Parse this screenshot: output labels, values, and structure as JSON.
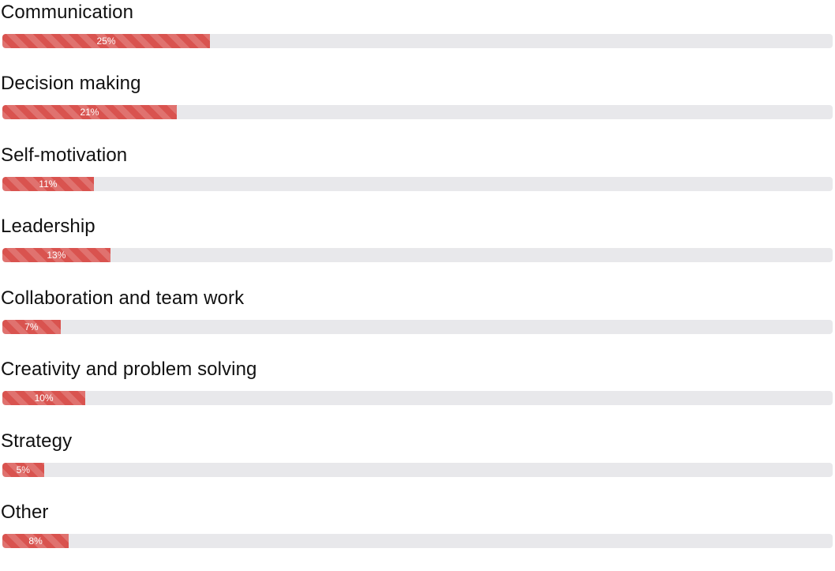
{
  "chart_data": {
    "type": "bar",
    "orientation": "horizontal",
    "max": 100,
    "unit": "%",
    "colors": {
      "bar": "#d9534f",
      "track": "#e8e8eb",
      "text": "#111111",
      "bar_text": "#ffffff"
    },
    "items": [
      {
        "label": "Communication",
        "value": 25,
        "value_label": "25%"
      },
      {
        "label": "Decision making",
        "value": 21,
        "value_label": "21%"
      },
      {
        "label": "Self-motivation",
        "value": 11,
        "value_label": "11%"
      },
      {
        "label": "Leadership",
        "value": 13,
        "value_label": "13%"
      },
      {
        "label": "Collaboration and team work",
        "value": 7,
        "value_label": "7%"
      },
      {
        "label": "Creativity and problem solving",
        "value": 10,
        "value_label": "10%"
      },
      {
        "label": "Strategy",
        "value": 5,
        "value_label": "5%"
      },
      {
        "label": "Other",
        "value": 8,
        "value_label": "8%"
      }
    ]
  }
}
